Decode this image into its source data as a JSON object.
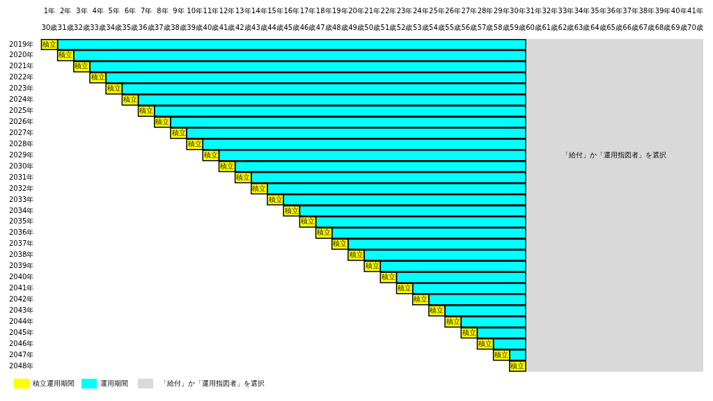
{
  "chart_data": {
    "type": "bar",
    "orientation": "horizontal",
    "legend": "bottom left",
    "categories": [
      "2019年",
      "2020年",
      "2021年",
      "2022年",
      "2023年",
      "2024年",
      "2025年",
      "2026年",
      "2027年",
      "2028年",
      "2029年",
      "2030年",
      "2031年",
      "2032年",
      "2033年",
      "2034年",
      "2035年",
      "2036年",
      "2037年",
      "2038年",
      "2039年",
      "2040年",
      "2041年",
      "2042年",
      "2043年",
      "2044年",
      "2045年",
      "2046年",
      "2047年",
      "2048年"
    ],
    "series": [
      {
        "name": "積立運用期間",
        "color": "#ffff00",
        "base": [
          0.5,
          1.5,
          2.5,
          3.5,
          4.5,
          5.5,
          6.5,
          7.5,
          8.5,
          9.5,
          10.5,
          11.5,
          12.5,
          13.5,
          14.5,
          15.5,
          16.5,
          17.5,
          18.5,
          19.5,
          20.5,
          21.5,
          22.5,
          23.5,
          24.5,
          25.5,
          26.5,
          27.5,
          28.5,
          29.5
        ],
        "values": [
          1,
          1,
          1,
          1,
          1,
          1,
          1,
          1,
          1,
          1,
          1,
          1,
          1,
          1,
          1,
          1,
          1,
          1,
          1,
          1,
          1,
          1,
          1,
          1,
          1,
          1,
          1,
          1,
          1,
          1
        ],
        "value_labels": [
          "積立",
          "積立",
          "積立",
          "積立",
          "積立",
          "積立",
          "積立",
          "積立",
          "積立",
          "積立",
          "積立",
          "積立",
          "積立",
          "積立",
          "積立",
          "積立",
          "積立",
          "積立",
          "積立",
          "積立",
          "積立",
          "積立",
          "積立",
          "積立",
          "積立",
          "積立",
          "積立",
          "積立",
          "積立",
          "積立"
        ]
      },
      {
        "name": "運用期間",
        "color": "#00ffff",
        "base": [
          1.5,
          2.5,
          3.5,
          4.5,
          5.5,
          6.5,
          7.5,
          8.5,
          9.5,
          10.5,
          11.5,
          12.5,
          13.5,
          14.5,
          15.5,
          16.5,
          17.5,
          18.5,
          19.5,
          20.5,
          21.5,
          22.5,
          23.5,
          24.5,
          25.5,
          26.5,
          27.5,
          28.5,
          29.5,
          null
        ],
        "values": [
          29,
          28,
          27,
          26,
          25,
          24,
          23,
          22,
          21,
          20,
          19,
          18,
          17,
          16,
          15,
          14,
          13,
          12,
          11,
          10,
          9,
          8,
          7,
          6,
          5,
          4,
          3,
          2,
          1,
          null
        ]
      }
    ],
    "xlim": [
      0.5,
      41.5
    ],
    "xticks": [
      {
        "value": 1,
        "label": "1年"
      },
      {
        "value": 2,
        "label": "2年"
      },
      {
        "value": 3,
        "label": "3年"
      },
      {
        "value": 4,
        "label": "4年"
      },
      {
        "value": 5,
        "label": "5年"
      },
      {
        "value": 6,
        "label": "6年"
      },
      {
        "value": 7,
        "label": "7年"
      },
      {
        "value": 8,
        "label": "8年"
      },
      {
        "value": 9,
        "label": "9年"
      },
      {
        "value": 10,
        "label": "10年"
      },
      {
        "value": 11,
        "label": "11年"
      },
      {
        "value": 12,
        "label": "12年"
      },
      {
        "value": 13,
        "label": "13年"
      },
      {
        "value": 14,
        "label": "14年"
      },
      {
        "value": 15,
        "label": "15年"
      },
      {
        "value": 16,
        "label": "16年"
      },
      {
        "value": 17,
        "label": "17年"
      },
      {
        "value": 18,
        "label": "18年"
      },
      {
        "value": 19,
        "label": "19年"
      },
      {
        "value": 20,
        "label": "20年"
      },
      {
        "value": 21,
        "label": "21年"
      },
      {
        "value": 22,
        "label": "22年"
      },
      {
        "value": 23,
        "label": "23年"
      },
      {
        "value": 24,
        "label": "24年"
      },
      {
        "value": 25,
        "label": "25年"
      },
      {
        "value": 26,
        "label": "26年"
      },
      {
        "value": 27,
        "label": "27年"
      },
      {
        "value": 28,
        "label": "28年"
      },
      {
        "value": 29,
        "label": "29年"
      },
      {
        "value": 30,
        "label": "30年"
      },
      {
        "value": 31,
        "label": "31年"
      },
      {
        "value": 32,
        "label": "32年"
      },
      {
        "value": 33,
        "label": "33年"
      },
      {
        "value": 34,
        "label": "34年"
      },
      {
        "value": 35,
        "label": "35年"
      },
      {
        "value": 36,
        "label": "36年"
      },
      {
        "value": 37,
        "label": "37年"
      },
      {
        "value": 38,
        "label": "38年"
      },
      {
        "value": 39,
        "label": "39年"
      },
      {
        "value": 40,
        "label": "40年"
      },
      {
        "value": 41,
        "label": "41年"
      }
    ],
    "x2lim": [
      29.5,
      70.5
    ],
    "x2ticks": [
      {
        "value": 30,
        "label": "30歳"
      },
      {
        "value": 31,
        "label": "31歳"
      },
      {
        "value": 32,
        "label": "32歳"
      },
      {
        "value": 33,
        "label": "33歳"
      },
      {
        "value": 34,
        "label": "34歳"
      },
      {
        "value": 35,
        "label": "35歳"
      },
      {
        "value": 36,
        "label": "36歳"
      },
      {
        "value": 37,
        "label": "37歳"
      },
      {
        "value": 38,
        "label": "38歳"
      },
      {
        "value": 39,
        "label": "39歳"
      },
      {
        "value": 40,
        "label": "40歳"
      },
      {
        "value": 41,
        "label": "41歳"
      },
      {
        "value": 42,
        "label": "42歳"
      },
      {
        "value": 43,
        "label": "43歳"
      },
      {
        "value": 44,
        "label": "44歳"
      },
      {
        "value": 45,
        "label": "45歳"
      },
      {
        "value": 46,
        "label": "46歳"
      },
      {
        "value": 47,
        "label": "47歳"
      },
      {
        "value": 48,
        "label": "48歳"
      },
      {
        "value": 49,
        "label": "49歳"
      },
      {
        "value": 50,
        "label": "50歳"
      },
      {
        "value": 51,
        "label": "51歳"
      },
      {
        "value": 52,
        "label": "52歳"
      },
      {
        "value": 53,
        "label": "53歳"
      },
      {
        "value": 54,
        "label": "54歳"
      },
      {
        "value": 55,
        "label": "55歳"
      },
      {
        "value": 56,
        "label": "56歳"
      },
      {
        "value": 57,
        "label": "57歳"
      },
      {
        "value": 58,
        "label": "58歳"
      },
      {
        "value": 59,
        "label": "59歳"
      },
      {
        "value": 60,
        "label": "60歳"
      },
      {
        "value": 61,
        "label": "61歳"
      },
      {
        "value": 62,
        "label": "62歳"
      },
      {
        "value": 63,
        "label": "63歳"
      },
      {
        "value": 64,
        "label": "64歳"
      },
      {
        "value": 65,
        "label": "65歳"
      },
      {
        "value": 66,
        "label": "66歳"
      },
      {
        "value": 67,
        "label": "67歳"
      },
      {
        "value": 68,
        "label": "68歳"
      },
      {
        "value": 69,
        "label": "69歳"
      },
      {
        "value": 70,
        "label": "70歳"
      }
    ],
    "bands": [
      {
        "axis": "x",
        "from": 30.5,
        "to": 41.5,
        "label": "「給付」か「運用指図者」を選択",
        "color": "#d9d9d9"
      }
    ]
  }
}
